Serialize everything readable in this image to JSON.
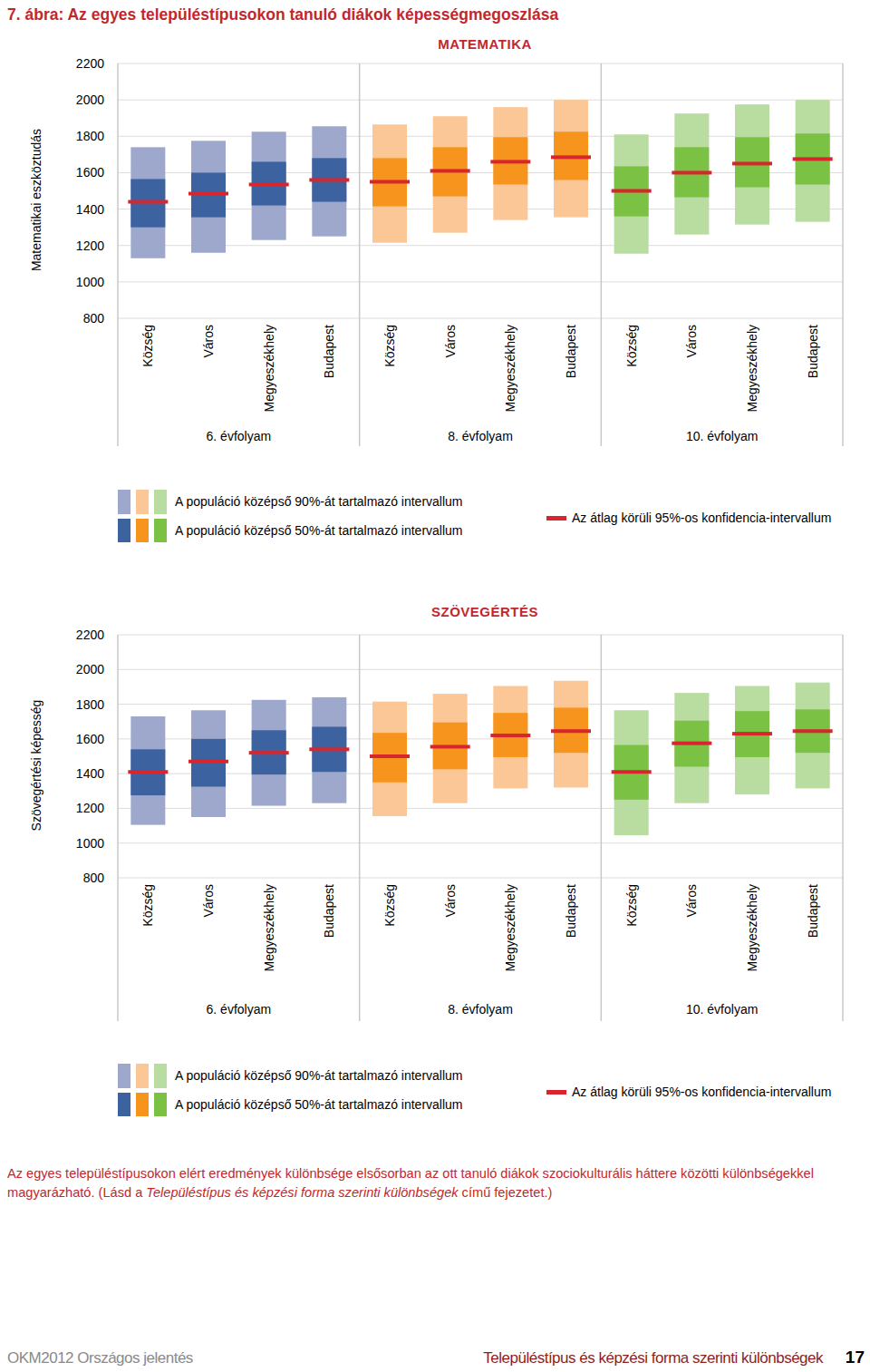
{
  "page": {
    "figure_title": "7. ábra: Az egyes településtípusokon tanuló diákok képességmegoszlása",
    "note": [
      "Az egyes településtípusokon elért eredmények különbsége elsősorban az ott tanuló diákok szociokulturális háttere közötti különbségekkel magyarázható. (Lásd a ",
      "Településtípus és képzési forma szerinti különbségek",
      " című fejezetet.)"
    ],
    "footer_left": "OKM2012 Országos jelentés",
    "footer_right": "Településtípus és képzési forma szerinti különbségek",
    "page_number": "17"
  },
  "chart_data": [
    {
      "type": "range",
      "title": "MATEMATIKA",
      "y_label": "Matematikai eszköztudás",
      "ylim": [
        800,
        2200
      ],
      "yticks": [
        800,
        1000,
        1200,
        1400,
        1600,
        1800,
        2000,
        2200
      ],
      "grid": true,
      "legend_labels": [
        "A populáció középső 90%-át tartalmazó intervallum",
        "A populáció középső 50%-át tartalmazó intervallum",
        "Az átlag körüli 95%-os konfidencia-intervallum"
      ],
      "groups": [
        {
          "label": "6. évfolyam",
          "categories": [
            "Község",
            "Város",
            "Megyeszékhely",
            "Budapest"
          ],
          "p5": [
            1130,
            1160,
            1230,
            1250
          ],
          "p25": [
            1300,
            1355,
            1420,
            1440
          ],
          "mean": [
            1440,
            1485,
            1535,
            1560
          ],
          "p75": [
            1565,
            1600,
            1660,
            1680
          ],
          "p95": [
            1740,
            1775,
            1825,
            1855
          ]
        },
        {
          "label": "8. évfolyam",
          "categories": [
            "Község",
            "Város",
            "Megyeszékhely",
            "Budapest"
          ],
          "p5": [
            1215,
            1270,
            1340,
            1355
          ],
          "p25": [
            1415,
            1470,
            1535,
            1560
          ],
          "mean": [
            1550,
            1610,
            1660,
            1685
          ],
          "p75": [
            1680,
            1740,
            1795,
            1825
          ],
          "p95": [
            1865,
            1910,
            1960,
            2000
          ]
        },
        {
          "label": "10. évfolyam",
          "categories": [
            "Község",
            "Város",
            "Megyeszékhely",
            "Budapest"
          ],
          "p5": [
            1155,
            1260,
            1315,
            1330
          ],
          "p25": [
            1360,
            1465,
            1520,
            1535
          ],
          "mean": [
            1500,
            1600,
            1650,
            1675
          ],
          "p75": [
            1635,
            1740,
            1795,
            1815
          ],
          "p95": [
            1810,
            1925,
            1975,
            2000
          ]
        }
      ]
    },
    {
      "type": "range",
      "title": "SZÖVEGÉRTÉS",
      "y_label": "Szövegértési képesség",
      "ylim": [
        800,
        2200
      ],
      "yticks": [
        800,
        1000,
        1200,
        1400,
        1600,
        1800,
        2000,
        2200
      ],
      "grid": true,
      "legend_labels": [
        "A populáció középső 90%-át tartalmazó intervallum",
        "A populáció középső 50%-át tartalmazó intervallum",
        "Az átlag körüli 95%-os konfidencia-intervallum"
      ],
      "groups": [
        {
          "label": "6. évfolyam",
          "categories": [
            "Község",
            "Város",
            "Megyeszékhely",
            "Budapest"
          ],
          "p5": [
            1105,
            1150,
            1215,
            1230
          ],
          "p25": [
            1275,
            1325,
            1395,
            1410
          ],
          "mean": [
            1410,
            1470,
            1520,
            1540
          ],
          "p75": [
            1540,
            1600,
            1650,
            1670
          ],
          "p95": [
            1730,
            1765,
            1825,
            1840
          ]
        },
        {
          "label": "8. évfolyam",
          "categories": [
            "Község",
            "Város",
            "Megyeszékhely",
            "Budapest"
          ],
          "p5": [
            1155,
            1230,
            1315,
            1320
          ],
          "p25": [
            1350,
            1425,
            1495,
            1520
          ],
          "mean": [
            1500,
            1555,
            1620,
            1645
          ],
          "p75": [
            1635,
            1695,
            1750,
            1780
          ],
          "p95": [
            1815,
            1860,
            1905,
            1935
          ]
        },
        {
          "label": "10. évfolyam",
          "categories": [
            "Község",
            "Város",
            "Megyeszékhely",
            "Budapest"
          ],
          "p5": [
            1045,
            1230,
            1280,
            1315
          ],
          "p25": [
            1250,
            1440,
            1495,
            1520
          ],
          "mean": [
            1410,
            1575,
            1630,
            1645
          ],
          "p75": [
            1565,
            1705,
            1760,
            1770
          ],
          "p95": [
            1765,
            1865,
            1905,
            1925
          ]
        }
      ]
    }
  ]
}
